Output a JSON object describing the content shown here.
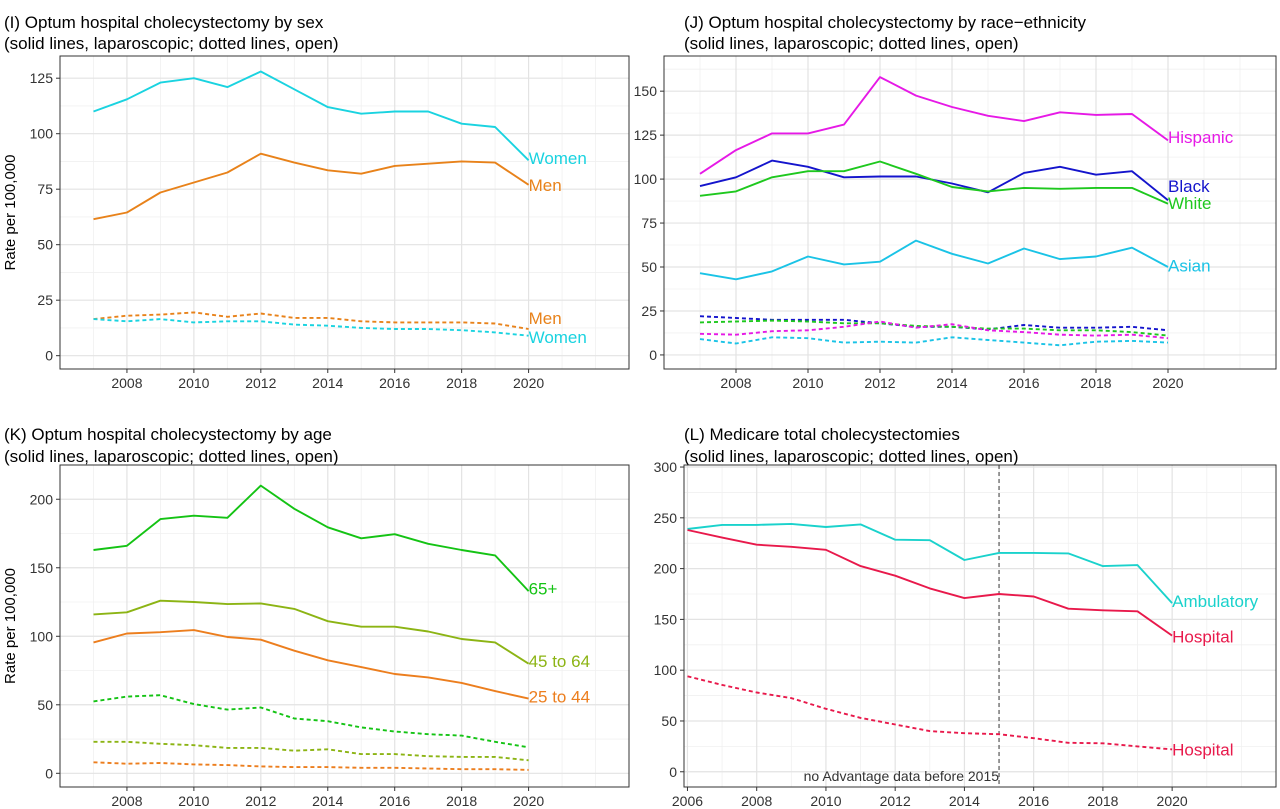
{
  "chart_data": [
    {
      "id": "I",
      "type": "line",
      "title": "(I) Optum hospital cholecystectomy by sex",
      "subtitle": "(solid lines, laparoscopic; dotted lines, open)",
      "ylabel": "Rate per 100,000",
      "xlim": [
        2006,
        2023
      ],
      "ylim": [
        -6,
        135
      ],
      "xticks": [
        2008,
        2010,
        2012,
        2014,
        2016,
        2018,
        2020
      ],
      "yticks": [
        0,
        25,
        50,
        75,
        100,
        125
      ],
      "grid": true,
      "legend": "direct labels at line ends",
      "series": [
        {
          "name": "Women",
          "style": "solid",
          "color": "#1ad3e0",
          "x": [
            2007,
            2008,
            2009,
            2010,
            2011,
            2012,
            2013,
            2014,
            2015,
            2016,
            2017,
            2018,
            2019,
            2020
          ],
          "y": [
            110,
            115.5,
            123,
            125,
            121,
            128,
            120,
            112,
            109,
            110,
            110,
            104.5,
            103,
            88
          ]
        },
        {
          "name": "Men",
          "style": "solid",
          "color": "#e8821a",
          "x": [
            2007,
            2008,
            2009,
            2010,
            2011,
            2012,
            2013,
            2014,
            2015,
            2016,
            2017,
            2018,
            2019,
            2020
          ],
          "y": [
            61.5,
            64.5,
            73.5,
            78,
            82.5,
            91,
            87,
            83.5,
            82,
            85.5,
            86.5,
            87.5,
            87,
            77
          ]
        },
        {
          "name": "Men",
          "style": "dotted",
          "color": "#e8821a",
          "x": [
            2007,
            2008,
            2009,
            2010,
            2011,
            2012,
            2013,
            2014,
            2015,
            2016,
            2017,
            2018,
            2019,
            2020
          ],
          "y": [
            16.5,
            18,
            18.5,
            19.5,
            17.5,
            19,
            17,
            17,
            15.5,
            15,
            15,
            15,
            14.5,
            12
          ]
        },
        {
          "name": "Women",
          "style": "dotted",
          "color": "#1ad3e0",
          "x": [
            2007,
            2008,
            2009,
            2010,
            2011,
            2012,
            2013,
            2014,
            2015,
            2016,
            2017,
            2018,
            2019,
            2020
          ],
          "y": [
            16.5,
            15.5,
            16.5,
            15,
            15.5,
            15.5,
            14,
            13.5,
            12.5,
            12,
            12,
            11.5,
            10.5,
            9
          ]
        }
      ],
      "labels": [
        {
          "text": "Women",
          "x": 2020,
          "y": 89,
          "color": "#1ad3e0"
        },
        {
          "text": "Men",
          "x": 2020,
          "y": 77,
          "color": "#e8821a"
        },
        {
          "text": "Men",
          "x": 2020,
          "y": 17,
          "color": "#e8821a"
        },
        {
          "text": "Women",
          "x": 2020,
          "y": 8.5,
          "color": "#1ad3e0"
        }
      ]
    },
    {
      "id": "J",
      "type": "line",
      "title": "(J) Optum hospital cholecystectomy by race−ethnicity",
      "subtitle": "(solid lines, laparoscopic; dotted lines, open)",
      "ylabel": "",
      "xlim": [
        2006,
        2023
      ],
      "ylim": [
        -8,
        170
      ],
      "xticks": [
        2008,
        2010,
        2012,
        2014,
        2016,
        2018,
        2020
      ],
      "yticks": [
        0,
        25,
        50,
        75,
        100,
        125,
        150
      ],
      "grid": true,
      "legend": "direct labels at line ends",
      "series": [
        {
          "name": "Hispanic",
          "style": "solid",
          "color": "#e619e6",
          "x": [
            2007,
            2008,
            2009,
            2010,
            2011,
            2012,
            2013,
            2014,
            2015,
            2016,
            2017,
            2018,
            2019,
            2020
          ],
          "y": [
            103,
            116.5,
            126,
            126,
            131,
            158,
            147.5,
            141,
            136,
            133,
            138,
            136.5,
            137,
            122
          ]
        },
        {
          "name": "Black",
          "style": "solid",
          "color": "#1414cc",
          "x": [
            2007,
            2008,
            2009,
            2010,
            2011,
            2012,
            2013,
            2014,
            2015,
            2016,
            2017,
            2018,
            2019,
            2020
          ],
          "y": [
            96,
            101,
            110.5,
            107,
            101,
            101.5,
            101.5,
            97.5,
            92.5,
            103.5,
            107,
            102.5,
            104.5,
            88
          ]
        },
        {
          "name": "White",
          "style": "solid",
          "color": "#1ec81e",
          "x": [
            2007,
            2008,
            2009,
            2010,
            2011,
            2012,
            2013,
            2014,
            2015,
            2016,
            2017,
            2018,
            2019,
            2020
          ],
          "y": [
            90.5,
            93,
            101,
            104.5,
            104.5,
            110,
            103,
            95.5,
            93,
            95,
            94.5,
            95,
            95,
            86
          ]
        },
        {
          "name": "Asian",
          "style": "solid",
          "color": "#1ac3e6",
          "x": [
            2007,
            2008,
            2009,
            2010,
            2011,
            2012,
            2013,
            2014,
            2015,
            2016,
            2017,
            2018,
            2019,
            2020
          ],
          "y": [
            46.5,
            43,
            47.5,
            56,
            51.5,
            53,
            65,
            57.5,
            52,
            60.5,
            54.5,
            56,
            61,
            50
          ]
        },
        {
          "name": "Black",
          "style": "dotted",
          "color": "#1414cc",
          "x": [
            2007,
            2008,
            2009,
            2010,
            2011,
            2012,
            2013,
            2014,
            2015,
            2016,
            2017,
            2018,
            2019,
            2020
          ],
          "y": [
            22,
            21,
            20,
            20,
            20,
            18,
            16,
            16,
            14.5,
            17,
            15.5,
            15.5,
            16,
            14
          ]
        },
        {
          "name": "White",
          "style": "dotted",
          "color": "#1ec81e",
          "x": [
            2007,
            2008,
            2009,
            2010,
            2011,
            2012,
            2013,
            2014,
            2015,
            2016,
            2017,
            2018,
            2019,
            2020
          ],
          "y": [
            18.5,
            19,
            19.5,
            19,
            18,
            18,
            16.5,
            16,
            15,
            15,
            14,
            14,
            13,
            11
          ]
        },
        {
          "name": "Hispanic",
          "style": "dotted",
          "color": "#e619e6",
          "x": [
            2007,
            2008,
            2009,
            2010,
            2011,
            2012,
            2013,
            2014,
            2015,
            2016,
            2017,
            2018,
            2019,
            2020
          ],
          "y": [
            12,
            11.5,
            13.5,
            14,
            16,
            19,
            15.5,
            17.5,
            14,
            13,
            11.5,
            11,
            11.5,
            9.5
          ]
        },
        {
          "name": "Asian",
          "style": "dotted",
          "color": "#1ac3e6",
          "x": [
            2007,
            2008,
            2009,
            2010,
            2011,
            2012,
            2013,
            2014,
            2015,
            2016,
            2017,
            2018,
            2019,
            2020
          ],
          "y": [
            9,
            6.5,
            10,
            9.5,
            7,
            7.5,
            7,
            10,
            8.5,
            7,
            5.5,
            7.5,
            8,
            7
          ]
        }
      ],
      "labels": [
        {
          "text": "Hispanic",
          "x": 2020,
          "y": 124,
          "color": "#e619e6"
        },
        {
          "text": "Black",
          "x": 2020,
          "y": 96,
          "color": "#1414cc"
        },
        {
          "text": "White",
          "x": 2020,
          "y": 86.5,
          "color": "#1ec81e"
        },
        {
          "text": "Asian",
          "x": 2020,
          "y": 51,
          "color": "#1ac3e6"
        }
      ]
    },
    {
      "id": "K",
      "type": "line",
      "title": "(K) Optum hospital cholecystectomy by age",
      "subtitle": "(solid lines, laparoscopic; dotted lines, open)",
      "ylabel": "Rate per 100,000",
      "xlim": [
        2006,
        2023
      ],
      "ylim": [
        -10,
        225
      ],
      "xticks": [
        2008,
        2010,
        2012,
        2014,
        2016,
        2018,
        2020
      ],
      "yticks": [
        0,
        50,
        100,
        150,
        200
      ],
      "grid": true,
      "legend": "direct labels at line ends",
      "series": [
        {
          "name": "65+",
          "style": "solid",
          "color": "#14c314",
          "x": [
            2007,
            2008,
            2009,
            2010,
            2011,
            2012,
            2013,
            2014,
            2015,
            2016,
            2017,
            2018,
            2019,
            2020
          ],
          "y": [
            163,
            166,
            185.5,
            188,
            186.5,
            210,
            193,
            179.5,
            171.5,
            174.5,
            167.5,
            163,
            159,
            133
          ]
        },
        {
          "name": "45 to 64",
          "style": "solid",
          "color": "#8cb414",
          "x": [
            2007,
            2008,
            2009,
            2010,
            2011,
            2012,
            2013,
            2014,
            2015,
            2016,
            2017,
            2018,
            2019,
            2020
          ],
          "y": [
            116,
            117.5,
            126,
            125,
            123.5,
            124,
            120,
            111,
            107,
            107,
            103.5,
            98,
            95.5,
            80
          ]
        },
        {
          "name": "25 to 44",
          "style": "solid",
          "color": "#ec7e1e",
          "x": [
            2007,
            2008,
            2009,
            2010,
            2011,
            2012,
            2013,
            2014,
            2015,
            2016,
            2017,
            2018,
            2019,
            2020
          ],
          "y": [
            95.5,
            102,
            103,
            104.5,
            99.5,
            97.5,
            89.5,
            82.5,
            77.5,
            72.5,
            70,
            66,
            60,
            54.5
          ]
        },
        {
          "name": "65+",
          "style": "dotted",
          "color": "#14c314",
          "x": [
            2007,
            2008,
            2009,
            2010,
            2011,
            2012,
            2013,
            2014,
            2015,
            2016,
            2017,
            2018,
            2019,
            2020
          ],
          "y": [
            52.5,
            56,
            57,
            50.5,
            46.5,
            48,
            40,
            38,
            33.5,
            30.5,
            28.5,
            27.5,
            23,
            19
          ]
        },
        {
          "name": "45 to 64",
          "style": "dotted",
          "color": "#8cb414",
          "x": [
            2007,
            2008,
            2009,
            2010,
            2011,
            2012,
            2013,
            2014,
            2015,
            2016,
            2017,
            2018,
            2019,
            2020
          ],
          "y": [
            23,
            23,
            21.5,
            20.5,
            18.5,
            18.5,
            16.5,
            17.5,
            14,
            14,
            12.5,
            12,
            12,
            9.5
          ]
        },
        {
          "name": "25 to 44",
          "style": "dotted",
          "color": "#ec7e1e",
          "x": [
            2007,
            2008,
            2009,
            2010,
            2011,
            2012,
            2013,
            2014,
            2015,
            2016,
            2017,
            2018,
            2019,
            2020
          ],
          "y": [
            8,
            7,
            7.5,
            6.5,
            6,
            5,
            4.5,
            4.5,
            4,
            4,
            3.5,
            3,
            3,
            2.5
          ]
        }
      ],
      "labels": [
        {
          "text": "65+",
          "x": 2020,
          "y": 135,
          "color": "#14c314"
        },
        {
          "text": "45 to 64",
          "x": 2020,
          "y": 82,
          "color": "#8cb414"
        },
        {
          "text": "25 to 44",
          "x": 2020,
          "y": 56,
          "color": "#ec7e1e"
        }
      ]
    },
    {
      "id": "L",
      "type": "line",
      "title": "(L) Medicare total cholecystectomies",
      "subtitle": "(solid lines, laparoscopic; dotted lines, open)",
      "ylabel": "",
      "xlim": [
        2005.9,
        2023
      ],
      "ylim": [
        -15,
        302
      ],
      "xticks": [
        2006,
        2008,
        2010,
        2012,
        2014,
        2016,
        2018,
        2020
      ],
      "yticks": [
        0,
        50,
        100,
        150,
        200,
        250,
        300
      ],
      "grid": true,
      "legend": "direct labels at line ends",
      "vline": {
        "x": 2015,
        "label": "no Advantage data before 2015"
      },
      "series": [
        {
          "name": "Ambulatory",
          "style": "solid",
          "color": "#1ad2cc",
          "x": [
            2006,
            2007,
            2008,
            2009,
            2010,
            2011,
            2012,
            2013,
            2014,
            2015,
            2016,
            2017,
            2018,
            2019,
            2020
          ],
          "y": [
            239,
            243,
            243,
            244,
            241,
            243.5,
            228.5,
            228,
            208.5,
            215.5,
            215.5,
            215,
            202.5,
            203.5,
            166
          ]
        },
        {
          "name": "Hospital",
          "style": "solid",
          "color": "#e8194b",
          "x": [
            2006,
            2007,
            2008,
            2009,
            2010,
            2011,
            2012,
            2013,
            2014,
            2015,
            2016,
            2017,
            2018,
            2019,
            2020
          ],
          "y": [
            238,
            230.5,
            223.5,
            221.5,
            218.5,
            202.5,
            193,
            180.5,
            171,
            175,
            172.5,
            160.5,
            159,
            158,
            134
          ]
        },
        {
          "name": "Hospital",
          "style": "dotted",
          "color": "#e8194b",
          "x": [
            2006,
            2007,
            2008,
            2009,
            2010,
            2011,
            2012,
            2013,
            2014,
            2015,
            2016,
            2017,
            2018,
            2019,
            2020
          ],
          "y": [
            94,
            85.5,
            78,
            72.5,
            62,
            53,
            46.5,
            40,
            38,
            37,
            33,
            28.5,
            28,
            25,
            22
          ]
        }
      ],
      "labels": [
        {
          "text": "Ambulatory",
          "x": 2020,
          "y": 168,
          "color": "#1ad2cc"
        },
        {
          "text": "Hospital",
          "x": 2020,
          "y": 133,
          "color": "#e8194b"
        },
        {
          "text": "Hospital",
          "x": 2020,
          "y": 22,
          "color": "#e8194b"
        }
      ]
    }
  ]
}
